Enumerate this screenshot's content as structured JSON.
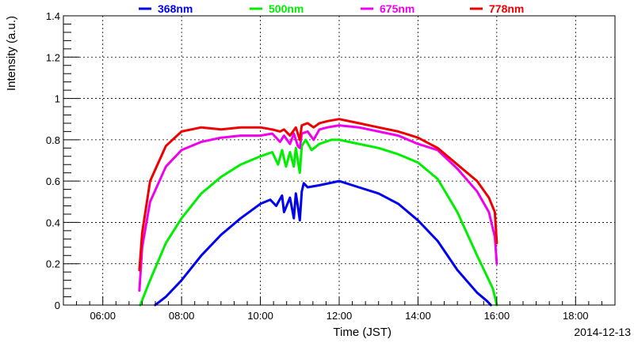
{
  "chart_data": {
    "type": "line",
    "xlabel": "Time (JST)",
    "ylabel": "Intensity (a.u.)",
    "date": "2014-12-13",
    "xlim": [
      5.0,
      19.0
    ],
    "ylim": [
      0,
      1.4
    ],
    "x_ticks": [
      "06:00",
      "08:00",
      "10:00",
      "12:00",
      "14:00",
      "16:00",
      "18:00"
    ],
    "y_ticks": [
      "0",
      "0.2",
      "0.4",
      "0.6",
      "0.8",
      "1",
      "1.2",
      "1.4"
    ],
    "grid": true,
    "legend_position": "top",
    "series": [
      {
        "name": "368nm",
        "color": "#0000ee",
        "x": [
          7.33,
          7.6,
          8.0,
          8.5,
          9.0,
          9.5,
          10.0,
          10.25,
          10.4,
          10.55,
          10.6,
          10.75,
          10.85,
          10.9,
          10.95,
          11.0,
          11.05,
          11.1,
          11.2,
          11.5,
          12.0,
          12.5,
          13.0,
          13.5,
          14.0,
          14.5,
          15.0,
          15.5,
          15.75,
          15.85
        ],
        "y": [
          0.0,
          0.04,
          0.12,
          0.24,
          0.34,
          0.42,
          0.49,
          0.51,
          0.48,
          0.53,
          0.45,
          0.52,
          0.42,
          0.54,
          0.48,
          0.41,
          0.55,
          0.59,
          0.57,
          0.58,
          0.6,
          0.57,
          0.54,
          0.49,
          0.41,
          0.31,
          0.17,
          0.06,
          0.02,
          0.0
        ]
      },
      {
        "name": "500nm",
        "color": "#00ee00",
        "x": [
          6.95,
          7.2,
          7.6,
          8.0,
          8.5,
          9.0,
          9.5,
          10.0,
          10.3,
          10.45,
          10.55,
          10.65,
          10.75,
          10.85,
          10.9,
          11.0,
          11.05,
          11.15,
          11.3,
          11.5,
          11.8,
          12.0,
          12.5,
          13.0,
          13.5,
          14.0,
          14.5,
          15.0,
          15.5,
          15.9,
          16.0
        ],
        "y": [
          0.0,
          0.12,
          0.3,
          0.42,
          0.54,
          0.62,
          0.68,
          0.72,
          0.74,
          0.68,
          0.75,
          0.67,
          0.74,
          0.67,
          0.76,
          0.64,
          0.77,
          0.8,
          0.75,
          0.78,
          0.8,
          0.8,
          0.78,
          0.76,
          0.73,
          0.69,
          0.61,
          0.45,
          0.24,
          0.08,
          0.0
        ]
      },
      {
        "name": "675nm",
        "color": "#ee00ee",
        "x": [
          6.93,
          7.0,
          7.2,
          7.6,
          8.0,
          8.5,
          9.0,
          9.5,
          10.0,
          10.3,
          10.5,
          10.6,
          10.75,
          10.85,
          10.95,
          11.0,
          11.05,
          11.2,
          11.35,
          11.5,
          11.7,
          12.0,
          12.5,
          13.0,
          13.5,
          14.0,
          14.5,
          15.0,
          15.5,
          15.8,
          15.95,
          16.0
        ],
        "y": [
          0.07,
          0.28,
          0.5,
          0.67,
          0.75,
          0.79,
          0.81,
          0.82,
          0.82,
          0.83,
          0.79,
          0.82,
          0.78,
          0.83,
          0.77,
          0.76,
          0.83,
          0.84,
          0.8,
          0.85,
          0.86,
          0.87,
          0.86,
          0.84,
          0.82,
          0.78,
          0.75,
          0.66,
          0.55,
          0.45,
          0.33,
          0.2
        ]
      },
      {
        "name": "778nm",
        "color": "#ee0000",
        "x": [
          6.93,
          7.0,
          7.2,
          7.6,
          8.0,
          8.5,
          9.0,
          9.5,
          10.0,
          10.3,
          10.5,
          10.6,
          10.75,
          10.9,
          11.0,
          11.05,
          11.2,
          11.35,
          11.5,
          11.7,
          12.0,
          12.5,
          13.0,
          13.5,
          14.0,
          14.5,
          15.0,
          15.5,
          15.8,
          15.95,
          16.0
        ],
        "y": [
          0.17,
          0.35,
          0.6,
          0.77,
          0.84,
          0.86,
          0.85,
          0.86,
          0.86,
          0.85,
          0.84,
          0.85,
          0.82,
          0.86,
          0.8,
          0.87,
          0.88,
          0.86,
          0.88,
          0.89,
          0.9,
          0.88,
          0.86,
          0.84,
          0.81,
          0.76,
          0.68,
          0.6,
          0.52,
          0.45,
          0.3
        ]
      }
    ]
  }
}
